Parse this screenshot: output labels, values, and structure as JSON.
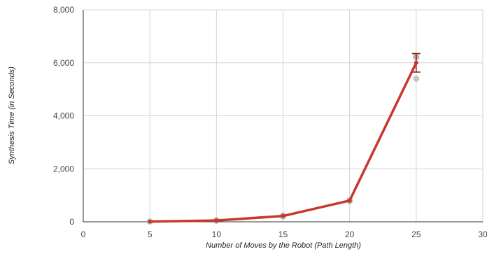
{
  "chart_data": {
    "type": "line",
    "xlabel": "Number of Moves by the Robot (Path Length)",
    "ylabel": "Synthesis Time (in Seconds)",
    "xlim": [
      0,
      30
    ],
    "ylim": [
      0,
      8000
    ],
    "x_ticks": [
      "0",
      "5",
      "10",
      "15",
      "20",
      "25",
      "30"
    ],
    "y_ticks": [
      "0",
      "2,000",
      "4,000",
      "6,000",
      "8,000"
    ],
    "grid": true,
    "series": [
      {
        "x": [
          5,
          10,
          15,
          20,
          25
        ],
        "values": [
          10,
          50,
          220,
          800,
          6000
        ],
        "color": "#c8372d",
        "error_bar": {
          "x": 25,
          "low": 5650,
          "high": 6350
        }
      }
    ],
    "samples": [
      {
        "x": 5,
        "y": 10
      },
      {
        "x": 10,
        "y": 40
      },
      {
        "x": 10,
        "y": 60
      },
      {
        "x": 15,
        "y": 200
      },
      {
        "x": 15,
        "y": 240
      },
      {
        "x": 20,
        "y": 780
      },
      {
        "x": 20,
        "y": 820
      },
      {
        "x": 25,
        "y": 5400
      },
      {
        "x": 25,
        "y": 6200
      },
      {
        "x": 25,
        "y": 6250
      }
    ],
    "sample_color": "#aaaaaa"
  }
}
